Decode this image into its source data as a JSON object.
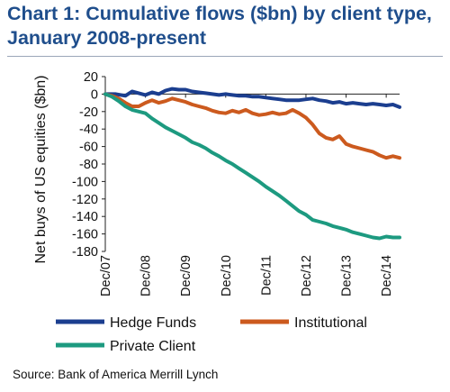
{
  "title_line1": "Chart 1: Cumulative flows ($bn) by client type,",
  "title_line2": "January 2008-present",
  "source": "Source: Bank of America Merrill Lynch",
  "chart_data": {
    "type": "line",
    "ylabel": "Net buys of US equities ($bn)",
    "ylim": [
      -180,
      20
    ],
    "yticks": [
      20,
      0,
      -20,
      -40,
      -60,
      -80,
      -100,
      -120,
      -140,
      -160,
      -180
    ],
    "xlim": [
      0,
      88
    ],
    "x_ticks": [
      {
        "x": 0,
        "label": "Dec/07"
      },
      {
        "x": 12,
        "label": "Dec/08"
      },
      {
        "x": 24,
        "label": "Dec/09"
      },
      {
        "x": 36,
        "label": "Dec/10"
      },
      {
        "x": 48,
        "label": "Dec/11"
      },
      {
        "x": 60,
        "label": "Dec/12"
      },
      {
        "x": 72,
        "label": "Dec/13"
      },
      {
        "x": 84,
        "label": "Dec/14"
      }
    ],
    "grid": false,
    "legend_position": "bottom",
    "series": [
      {
        "name": "Hedge Funds",
        "color": "#1b3e8f",
        "x": [
          0,
          3,
          6,
          8,
          10,
          12,
          14,
          16,
          18,
          20,
          22,
          24,
          26,
          28,
          30,
          32,
          34,
          36,
          38,
          40,
          42,
          44,
          46,
          48,
          50,
          52,
          54,
          56,
          58,
          60,
          62,
          64,
          66,
          68,
          70,
          72,
          74,
          76,
          78,
          80,
          82,
          84,
          86,
          88
        ],
        "y": [
          0,
          0,
          -2,
          3,
          1,
          -1,
          2,
          0,
          4,
          6,
          5,
          5,
          3,
          2,
          1,
          0,
          -1,
          0,
          -1,
          -2,
          -2,
          -3,
          -3,
          -4,
          -5,
          -6,
          -7,
          -7,
          -7,
          -6,
          -5,
          -7,
          -8,
          -10,
          -9,
          -11,
          -10,
          -11,
          -12,
          -11,
          -12,
          -13,
          -12,
          -15
        ]
      },
      {
        "name": "Institutional",
        "color": "#cc5a1e",
        "x": [
          0,
          2,
          4,
          6,
          8,
          10,
          12,
          14,
          16,
          18,
          20,
          22,
          24,
          26,
          28,
          30,
          32,
          34,
          36,
          38,
          40,
          42,
          44,
          46,
          48,
          50,
          52,
          54,
          56,
          58,
          60,
          62,
          64,
          66,
          68,
          70,
          72,
          74,
          76,
          78,
          80,
          82,
          84,
          86,
          88
        ],
        "y": [
          0,
          -2,
          -5,
          -10,
          -14,
          -14,
          -10,
          -7,
          -10,
          -8,
          -5,
          -7,
          -9,
          -12,
          -14,
          -16,
          -19,
          -21,
          -22,
          -19,
          -21,
          -18,
          -22,
          -24,
          -23,
          -21,
          -23,
          -22,
          -18,
          -22,
          -27,
          -35,
          -45,
          -50,
          -52,
          -48,
          -57,
          -60,
          -62,
          -64,
          -66,
          -70,
          -73,
          -71,
          -73
        ]
      },
      {
        "name": "Private Client",
        "color": "#1d9a80",
        "x": [
          0,
          2,
          4,
          6,
          8,
          10,
          12,
          14,
          16,
          18,
          20,
          22,
          24,
          26,
          28,
          30,
          32,
          34,
          36,
          38,
          40,
          42,
          44,
          46,
          48,
          50,
          52,
          54,
          56,
          58,
          60,
          62,
          64,
          66,
          68,
          70,
          72,
          74,
          76,
          78,
          80,
          82,
          84,
          86,
          88
        ],
        "y": [
          0,
          -3,
          -8,
          -14,
          -18,
          -20,
          -22,
          -28,
          -33,
          -38,
          -42,
          -46,
          -50,
          -55,
          -58,
          -62,
          -67,
          -71,
          -76,
          -80,
          -85,
          -90,
          -95,
          -100,
          -106,
          -111,
          -116,
          -122,
          -128,
          -134,
          -138,
          -144,
          -146,
          -148,
          -151,
          -153,
          -155,
          -158,
          -160,
          -162,
          -164,
          -165,
          -163,
          -164,
          -164
        ]
      }
    ]
  }
}
